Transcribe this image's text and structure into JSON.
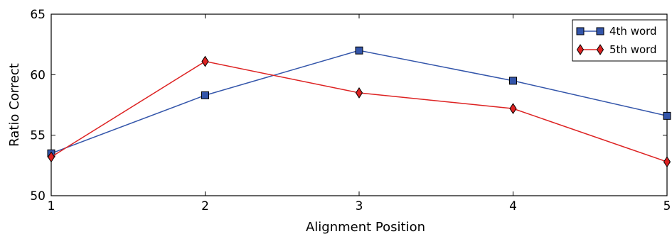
{
  "chart_data": {
    "type": "line",
    "xlabel": "Alignment Position",
    "ylabel": "Ratio Correct",
    "x": [
      1,
      2,
      3,
      4,
      5
    ],
    "xlim": [
      1,
      5
    ],
    "ylim": [
      50,
      65
    ],
    "xticks": [
      1,
      2,
      3,
      4,
      5
    ],
    "yticks": [
      50,
      55,
      60,
      65
    ],
    "grid": false,
    "legend_position": "top-right",
    "series": [
      {
        "name": "4th word",
        "values": [
          53.5,
          58.3,
          62.0,
          59.5,
          56.6
        ],
        "color": "#3355aa",
        "marker": "square"
      },
      {
        "name": "5th word",
        "values": [
          53.2,
          61.1,
          58.5,
          57.2,
          52.8
        ],
        "color": "#dd2222",
        "marker": "diamond"
      }
    ]
  }
}
